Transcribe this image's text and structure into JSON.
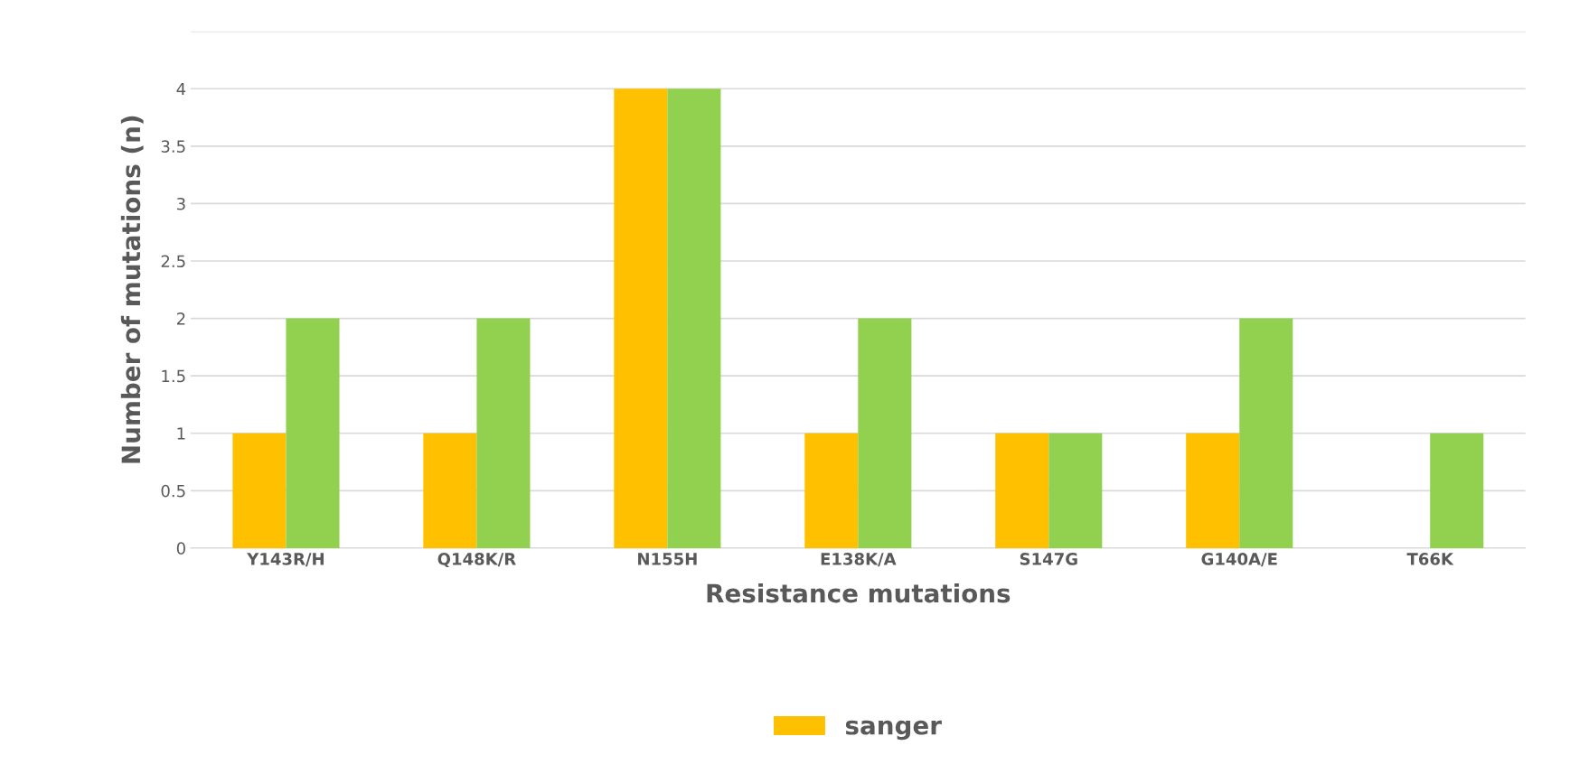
{
  "chart_data": {
    "type": "bar",
    "xlabel": "Resistance mutations",
    "ylabel": "Number of mutations (n)",
    "categories": [
      "Y143R/H",
      "Q148K/R",
      "N155H",
      "E138K/A",
      "S147G",
      "G140A/E",
      "T66K"
    ],
    "series": [
      {
        "name": "sanger",
        "color": "#ffc000",
        "values": [
          1,
          1,
          4,
          1,
          1,
          1,
          0
        ]
      },
      {
        "color": "#92d050",
        "values": [
          2,
          2,
          4,
          2,
          1,
          2,
          1
        ]
      }
    ],
    "ylim": [
      0,
      4.5
    ],
    "yticks": [
      0,
      0.5,
      1,
      1.5,
      2,
      2.5,
      3,
      3.5,
      4,
      {
        "value": 4.5,
        "label": null
      }
    ],
    "grid": "y",
    "legend": "bottom"
  }
}
